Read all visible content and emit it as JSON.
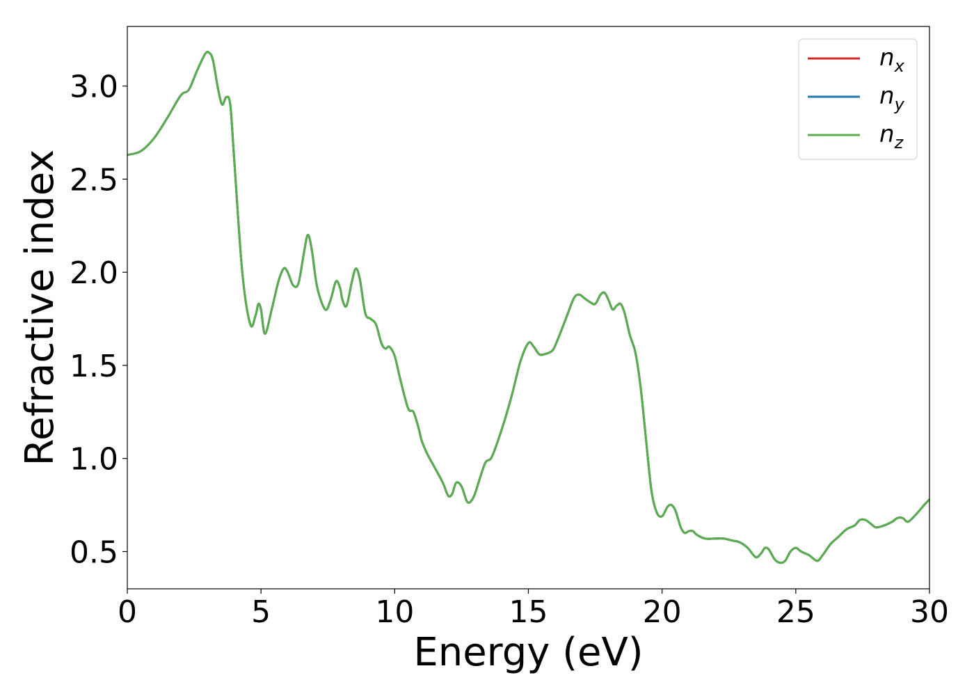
{
  "chart_data": {
    "type": "line",
    "xlabel": "Energy (eV)",
    "ylabel": "Refractive index",
    "xlim": [
      0,
      30
    ],
    "ylim": [
      0.3,
      3.32
    ],
    "xticks": [
      0,
      5,
      10,
      15,
      20,
      25,
      30
    ],
    "xtick_labels": [
      "0",
      "5",
      "10",
      "15",
      "20",
      "25",
      "30"
    ],
    "yticks": [
      0.5,
      1.0,
      1.5,
      2.0,
      2.5,
      3.0
    ],
    "ytick_labels": [
      "0.5",
      "1.0",
      "1.5",
      "2.0",
      "2.5",
      "3.0"
    ],
    "grid": false,
    "legend_position": "top-right",
    "x": [
      0,
      0.5,
      1.0,
      1.5,
      2.0,
      2.3,
      2.6,
      2.9,
      3.05,
      3.2,
      3.4,
      3.55,
      3.7,
      3.85,
      4.0,
      4.3,
      4.6,
      4.8,
      4.9,
      5.0,
      5.15,
      5.4,
      5.65,
      5.85,
      6.0,
      6.2,
      6.4,
      6.6,
      6.75,
      6.9,
      7.1,
      7.4,
      7.6,
      7.8,
      7.95,
      8.05,
      8.2,
      8.4,
      8.55,
      8.7,
      8.9,
      9.1,
      9.3,
      9.5,
      9.65,
      9.8,
      10.0,
      10.2,
      10.5,
      10.7,
      10.9,
      11.0,
      11.2,
      11.5,
      11.8,
      12.0,
      12.15,
      12.3,
      12.5,
      12.7,
      12.85,
      13.0,
      13.2,
      13.4,
      13.6,
      13.8,
      14.1,
      14.4,
      14.7,
      15.0,
      15.2,
      15.4,
      15.6,
      15.9,
      16.1,
      16.4,
      16.7,
      16.9,
      17.1,
      17.3,
      17.5,
      17.7,
      17.85,
      18.0,
      18.15,
      18.3,
      18.45,
      18.6,
      18.8,
      19.0,
      19.2,
      19.4,
      19.6,
      19.8,
      20.0,
      20.2,
      20.35,
      20.5,
      20.7,
      20.85,
      21.0,
      21.15,
      21.3,
      21.6,
      22.0,
      22.3,
      22.6,
      22.9,
      23.2,
      23.5,
      23.7,
      23.85,
      24.0,
      24.2,
      24.4,
      24.6,
      24.8,
      25.0,
      25.2,
      25.5,
      25.8,
      26.0,
      26.3,
      26.6,
      26.9,
      27.2,
      27.4,
      27.6,
      27.8,
      28.0,
      28.3,
      28.6,
      28.8,
      29.0,
      29.2,
      29.5,
      29.8,
      30.0
    ],
    "series": [
      {
        "name": "n_x",
        "color": "#d62728",
        "values": [
          2.63,
          2.65,
          2.72,
          2.83,
          2.95,
          2.98,
          3.08,
          3.17,
          3.18,
          3.14,
          2.98,
          2.9,
          2.94,
          2.9,
          2.6,
          2.0,
          1.72,
          1.77,
          1.83,
          1.8,
          1.67,
          1.8,
          1.95,
          2.02,
          2.0,
          1.93,
          1.94,
          2.1,
          2.2,
          2.12,
          1.92,
          1.8,
          1.85,
          1.95,
          1.92,
          1.85,
          1.82,
          1.95,
          2.02,
          1.96,
          1.78,
          1.75,
          1.72,
          1.62,
          1.59,
          1.6,
          1.55,
          1.43,
          1.27,
          1.25,
          1.16,
          1.1,
          1.03,
          0.95,
          0.87,
          0.8,
          0.81,
          0.87,
          0.85,
          0.77,
          0.77,
          0.81,
          0.9,
          0.98,
          1.0,
          1.07,
          1.2,
          1.35,
          1.52,
          1.62,
          1.6,
          1.56,
          1.56,
          1.58,
          1.64,
          1.75,
          1.86,
          1.88,
          1.86,
          1.84,
          1.83,
          1.88,
          1.89,
          1.85,
          1.8,
          1.82,
          1.83,
          1.78,
          1.66,
          1.57,
          1.38,
          1.1,
          0.83,
          0.71,
          0.69,
          0.74,
          0.75,
          0.72,
          0.63,
          0.6,
          0.61,
          0.61,
          0.59,
          0.57,
          0.57,
          0.57,
          0.56,
          0.55,
          0.52,
          0.47,
          0.49,
          0.52,
          0.51,
          0.46,
          0.44,
          0.45,
          0.5,
          0.52,
          0.5,
          0.48,
          0.45,
          0.48,
          0.54,
          0.58,
          0.62,
          0.64,
          0.67,
          0.67,
          0.65,
          0.63,
          0.64,
          0.66,
          0.68,
          0.68,
          0.66,
          0.7,
          0.75,
          0.78
        ]
      },
      {
        "name": "n_y",
        "color": "#1f77b4",
        "values": [
          2.63,
          2.65,
          2.72,
          2.83,
          2.95,
          2.98,
          3.08,
          3.17,
          3.18,
          3.14,
          2.98,
          2.9,
          2.94,
          2.9,
          2.6,
          2.0,
          1.72,
          1.77,
          1.83,
          1.8,
          1.67,
          1.8,
          1.95,
          2.02,
          2.0,
          1.93,
          1.94,
          2.1,
          2.2,
          2.12,
          1.92,
          1.8,
          1.85,
          1.95,
          1.92,
          1.85,
          1.82,
          1.95,
          2.02,
          1.96,
          1.78,
          1.75,
          1.72,
          1.62,
          1.59,
          1.6,
          1.55,
          1.43,
          1.27,
          1.25,
          1.16,
          1.1,
          1.03,
          0.95,
          0.87,
          0.8,
          0.81,
          0.87,
          0.85,
          0.77,
          0.77,
          0.81,
          0.9,
          0.98,
          1.0,
          1.07,
          1.2,
          1.35,
          1.52,
          1.62,
          1.6,
          1.56,
          1.56,
          1.58,
          1.64,
          1.75,
          1.86,
          1.88,
          1.86,
          1.84,
          1.83,
          1.88,
          1.89,
          1.85,
          1.8,
          1.82,
          1.83,
          1.78,
          1.66,
          1.57,
          1.38,
          1.1,
          0.83,
          0.71,
          0.69,
          0.74,
          0.75,
          0.72,
          0.63,
          0.6,
          0.61,
          0.61,
          0.59,
          0.57,
          0.57,
          0.57,
          0.56,
          0.55,
          0.52,
          0.47,
          0.49,
          0.52,
          0.51,
          0.46,
          0.44,
          0.45,
          0.5,
          0.52,
          0.5,
          0.48,
          0.45,
          0.48,
          0.54,
          0.58,
          0.62,
          0.64,
          0.67,
          0.67,
          0.65,
          0.63,
          0.64,
          0.66,
          0.68,
          0.68,
          0.66,
          0.7,
          0.75,
          0.78
        ]
      },
      {
        "name": "n_z",
        "color": "#5aad4e",
        "values": [
          2.63,
          2.65,
          2.72,
          2.83,
          2.95,
          2.98,
          3.08,
          3.17,
          3.18,
          3.14,
          2.98,
          2.9,
          2.94,
          2.9,
          2.6,
          2.0,
          1.72,
          1.77,
          1.83,
          1.8,
          1.67,
          1.8,
          1.95,
          2.02,
          2.0,
          1.93,
          1.94,
          2.1,
          2.2,
          2.12,
          1.92,
          1.8,
          1.85,
          1.95,
          1.92,
          1.85,
          1.82,
          1.95,
          2.02,
          1.96,
          1.78,
          1.75,
          1.72,
          1.62,
          1.59,
          1.6,
          1.55,
          1.43,
          1.27,
          1.25,
          1.16,
          1.1,
          1.03,
          0.95,
          0.87,
          0.8,
          0.81,
          0.87,
          0.85,
          0.77,
          0.77,
          0.81,
          0.9,
          0.98,
          1.0,
          1.07,
          1.2,
          1.35,
          1.52,
          1.62,
          1.6,
          1.56,
          1.56,
          1.58,
          1.64,
          1.75,
          1.86,
          1.88,
          1.86,
          1.84,
          1.83,
          1.88,
          1.89,
          1.85,
          1.8,
          1.82,
          1.83,
          1.78,
          1.66,
          1.57,
          1.38,
          1.1,
          0.83,
          0.71,
          0.69,
          0.74,
          0.75,
          0.72,
          0.63,
          0.6,
          0.61,
          0.61,
          0.59,
          0.57,
          0.57,
          0.57,
          0.56,
          0.55,
          0.52,
          0.47,
          0.49,
          0.52,
          0.51,
          0.46,
          0.44,
          0.45,
          0.5,
          0.52,
          0.5,
          0.48,
          0.45,
          0.48,
          0.54,
          0.58,
          0.62,
          0.64,
          0.67,
          0.67,
          0.65,
          0.63,
          0.64,
          0.66,
          0.68,
          0.68,
          0.66,
          0.7,
          0.75,
          0.78
        ]
      }
    ],
    "legend": [
      {
        "base": "n",
        "sub": "x",
        "color": "#d62728"
      },
      {
        "base": "n",
        "sub": "y",
        "color": "#1f77b4"
      },
      {
        "base": "n",
        "sub": "z",
        "color": "#5aad4e"
      }
    ]
  }
}
